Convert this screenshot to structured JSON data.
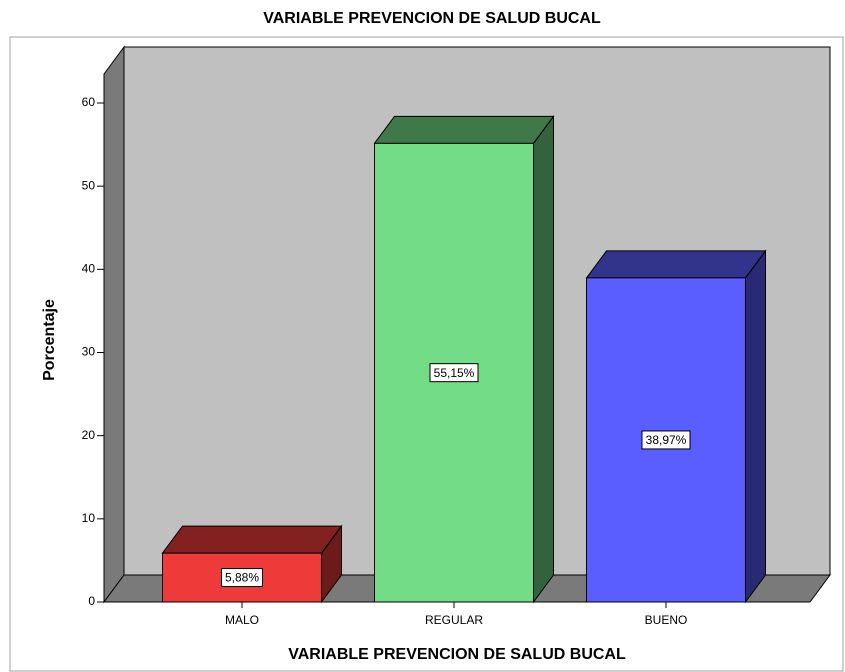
{
  "chart_data": {
    "type": "bar3d",
    "title": "VARIABLE PREVENCION DE SALUD BUCAL",
    "x_label": "VARIABLE PREVENCION DE SALUD BUCAL",
    "y_label": "Porcentaje",
    "categories": [
      "MALO",
      "REGULAR",
      "BUENO"
    ],
    "values": [
      5.88,
      55.15,
      38.97
    ],
    "value_labels": [
      "5,88%",
      "55,15%",
      "38,97%"
    ],
    "colors": [
      "#ef3a3a",
      "#72dc86",
      "#5a5eff"
    ],
    "ylim": [
      0,
      60
    ],
    "yticks": [
      0,
      10,
      20,
      30,
      40,
      50,
      60
    ]
  }
}
